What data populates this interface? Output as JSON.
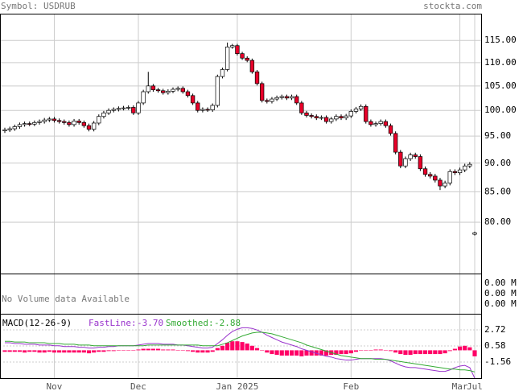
{
  "header": {
    "symbol": "Symbol: USDRUB",
    "site": "stockta.com"
  },
  "volume": {
    "message": "No Volume data Available",
    "ticks": [
      "0.00 M",
      "0.00 M",
      "0.00 M"
    ]
  },
  "chart_data": [
    {
      "type": "candlestick",
      "log_scale": true,
      "grid": true,
      "up_color": "#ffffff",
      "down_color": "#e8002a",
      "categories": [
        null,
        null,
        null,
        null,
        null,
        null,
        null,
        null,
        null,
        null,
        "Nov",
        null,
        null,
        null,
        null,
        null,
        null,
        null,
        null,
        null,
        null,
        null,
        null,
        null,
        null,
        null,
        null,
        "Dec",
        null,
        null,
        null,
        null,
        null,
        null,
        null,
        null,
        null,
        null,
        null,
        null,
        null,
        null,
        null,
        null,
        null,
        null,
        null,
        "Jan 2025",
        null,
        null,
        null,
        null,
        null,
        null,
        null,
        null,
        null,
        null,
        null,
        null,
        null,
        null,
        null,
        null,
        null,
        null,
        null,
        null,
        null,
        null,
        "Feb",
        null,
        null,
        null,
        null,
        null,
        null,
        null,
        null,
        null,
        null,
        null,
        null,
        null,
        null,
        null,
        null,
        null,
        null,
        null,
        null,
        null,
        "Mar",
        null,
        null,
        "Jul"
      ],
      "open": [
        96.0,
        96.2,
        96.4,
        96.8,
        97.2,
        97.4,
        97.3,
        97.6,
        97.8,
        98.1,
        98.3,
        98.0,
        97.8,
        97.6,
        97.2,
        97.9,
        97.6,
        97.0,
        96.3,
        97.5,
        98.8,
        99.5,
        100.0,
        100.2,
        100.4,
        100.5,
        100.6,
        99.5,
        101.5,
        103.8,
        105.0,
        104.2,
        104.0,
        103.6,
        103.9,
        104.3,
        104.5,
        103.8,
        103.0,
        101.5,
        100.0,
        100.2,
        100.1,
        101.0,
        107.0,
        108.5,
        113.5,
        113.8,
        112.0,
        111.0,
        110.5,
        108.0,
        105.5,
        102.0,
        101.8,
        102.3,
        102.6,
        102.8,
        102.5,
        102.8,
        101.5,
        99.5,
        99.0,
        98.8,
        98.5,
        98.6,
        97.8,
        98.3,
        98.8,
        98.5,
        98.9,
        99.8,
        100.3,
        100.8,
        97.8,
        97.2,
        97.4,
        97.8,
        97.0,
        95.5,
        92.0,
        89.5,
        90.8,
        91.5,
        91.2,
        89.0,
        88.0,
        87.7,
        87.0,
        86.0,
        86.5,
        88.5,
        88.3,
        88.8,
        89.5,
        78.1
      ],
      "high": [
        96.6,
        96.8,
        97.2,
        97.6,
        97.8,
        97.8,
        98.0,
        98.2,
        98.5,
        98.7,
        98.7,
        98.4,
        98.2,
        98.0,
        98.3,
        98.3,
        98.0,
        97.4,
        97.9,
        99.2,
        99.9,
        100.4,
        100.6,
        100.8,
        100.9,
        101.0,
        101.0,
        101.9,
        104.2,
        108.0,
        105.4,
        104.6,
        104.4,
        104.3,
        104.7,
        104.9,
        104.9,
        104.2,
        103.4,
        101.9,
        100.6,
        100.6,
        101.4,
        107.4,
        108.9,
        114.5,
        114.2,
        114.2,
        112.4,
        111.4,
        110.9,
        108.4,
        105.9,
        102.4,
        102.7,
        103.0,
        103.2,
        103.2,
        103.2,
        103.2,
        101.9,
        99.9,
        99.4,
        99.2,
        99.0,
        99.0,
        98.7,
        99.2,
        99.2,
        99.3,
        100.2,
        100.7,
        101.2,
        101.2,
        98.2,
        97.8,
        98.2,
        98.2,
        97.4,
        95.9,
        92.4,
        91.2,
        91.9,
        91.9,
        91.6,
        89.4,
        88.4,
        88.1,
        87.4,
        86.9,
        88.9,
        88.9,
        89.2,
        89.9,
        90.2,
        78.5
      ],
      "low": [
        95.6,
        95.8,
        96.0,
        96.4,
        96.8,
        96.9,
        96.9,
        97.2,
        97.4,
        97.7,
        97.6,
        97.4,
        97.2,
        96.8,
        96.8,
        97.2,
        96.6,
        95.9,
        95.9,
        97.1,
        98.4,
        99.1,
        99.6,
        99.8,
        100.0,
        100.1,
        99.1,
        99.1,
        101.1,
        103.4,
        103.8,
        103.6,
        103.2,
        103.2,
        103.5,
        103.9,
        103.4,
        102.6,
        101.1,
        99.6,
        99.6,
        99.7,
        99.7,
        100.6,
        106.6,
        108.1,
        113.1,
        111.6,
        110.6,
        110.1,
        107.6,
        105.1,
        101.6,
        101.4,
        101.4,
        101.9,
        102.2,
        102.1,
        102.1,
        101.1,
        99.1,
        98.6,
        98.4,
        98.1,
        98.1,
        97.4,
        97.4,
        97.9,
        98.1,
        98.1,
        98.5,
        99.4,
        99.9,
        97.4,
        96.8,
        96.8,
        97.0,
        96.6,
        95.1,
        91.6,
        89.1,
        89.1,
        90.4,
        90.8,
        88.6,
        87.6,
        87.3,
        86.6,
        85.3,
        85.6,
        86.1,
        87.9,
        87.9,
        88.4,
        89.1,
        77.9
      ],
      "close": [
        96.2,
        96.4,
        96.8,
        97.2,
        97.4,
        97.3,
        97.6,
        97.8,
        98.1,
        98.3,
        98.0,
        97.8,
        97.6,
        97.2,
        97.9,
        97.6,
        97.0,
        96.3,
        97.5,
        98.8,
        99.5,
        100.0,
        100.2,
        100.4,
        100.5,
        100.6,
        99.5,
        101.5,
        103.8,
        105.0,
        104.2,
        104.0,
        103.6,
        103.9,
        104.3,
        104.5,
        103.8,
        103.0,
        101.5,
        100.0,
        100.2,
        100.1,
        101.0,
        107.0,
        108.5,
        113.5,
        113.8,
        112.0,
        111.0,
        110.5,
        108.0,
        105.5,
        102.0,
        101.8,
        102.3,
        102.6,
        102.8,
        102.5,
        102.8,
        101.5,
        99.5,
        99.0,
        98.8,
        98.5,
        98.6,
        97.8,
        98.3,
        98.8,
        98.5,
        98.9,
        99.8,
        100.3,
        100.8,
        97.8,
        97.2,
        97.4,
        97.8,
        97.0,
        95.5,
        92.0,
        89.5,
        90.8,
        91.5,
        91.2,
        89.0,
        88.0,
        87.7,
        87.0,
        86.0,
        86.5,
        88.5,
        88.3,
        88.8,
        89.5,
        89.8,
        78.3
      ],
      "ylim": [
        72.2,
        121.3
      ],
      "yticks": [
        {
          "value": 80,
          "label": "80.00"
        },
        {
          "value": 85,
          "label": "85.00"
        },
        {
          "value": 90,
          "label": "90.00"
        },
        {
          "value": 95,
          "label": "95.00"
        },
        {
          "value": 100,
          "label": "100.00"
        },
        {
          "value": 105,
          "label": "105.00"
        },
        {
          "value": 110,
          "label": "110.00"
        },
        {
          "value": 115,
          "label": "115.00"
        }
      ]
    },
    {
      "type": "macd",
      "title": "MACD(12-26-9)",
      "series": [
        {
          "name": "FastLine:",
          "last_label": "-3.70",
          "color": "#9933cc",
          "values": [
            1.0,
            1.0,
            0.9,
            0.9,
            0.8,
            0.8,
            0.8,
            0.7,
            0.7,
            0.7,
            0.6,
            0.6,
            0.5,
            0.5,
            0.5,
            0.4,
            0.4,
            0.3,
            0.3,
            0.4,
            0.4,
            0.5,
            0.5,
            0.6,
            0.6,
            0.6,
            0.6,
            0.7,
            0.8,
            0.9,
            0.9,
            0.9,
            0.8,
            0.8,
            0.8,
            0.7,
            0.7,
            0.6,
            0.5,
            0.4,
            0.3,
            0.3,
            0.4,
            0.9,
            1.4,
            2.0,
            2.5,
            2.8,
            3.0,
            3.0,
            2.9,
            2.7,
            2.4,
            2.0,
            1.7,
            1.4,
            1.1,
            0.9,
            0.7,
            0.5,
            0.2,
            0.0,
            -0.2,
            -0.4,
            -0.6,
            -0.8,
            -0.9,
            -1.1,
            -1.2,
            -1.3,
            -1.3,
            -1.2,
            -1.1,
            -1.1,
            -1.1,
            -1.1,
            -1.1,
            -1.2,
            -1.4,
            -1.7,
            -2.0,
            -2.2,
            -2.3,
            -2.3,
            -2.4,
            -2.5,
            -2.6,
            -2.7,
            -2.8,
            -2.8,
            -2.6,
            -2.3,
            -2.1,
            -2.0,
            -2.3,
            -3.7
          ]
        },
        {
          "name": "Smoothed:",
          "last_label": "-2.88",
          "color": "#33aa33",
          "values": [
            1.2,
            1.2,
            1.1,
            1.1,
            1.1,
            1.0,
            1.0,
            1.0,
            1.0,
            0.9,
            0.9,
            0.9,
            0.8,
            0.8,
            0.8,
            0.7,
            0.7,
            0.7,
            0.6,
            0.6,
            0.6,
            0.6,
            0.6,
            0.6,
            0.6,
            0.6,
            0.6,
            0.6,
            0.6,
            0.7,
            0.7,
            0.7,
            0.7,
            0.7,
            0.7,
            0.7,
            0.7,
            0.7,
            0.7,
            0.7,
            0.6,
            0.6,
            0.6,
            0.6,
            0.8,
            1.0,
            1.3,
            1.6,
            1.9,
            2.1,
            2.3,
            2.4,
            2.4,
            2.3,
            2.2,
            2.0,
            1.8,
            1.6,
            1.4,
            1.2,
            1.0,
            0.7,
            0.5,
            0.3,
            0.1,
            -0.1,
            -0.3,
            -0.5,
            -0.7,
            -0.8,
            -0.9,
            -1.0,
            -1.1,
            -1.1,
            -1.1,
            -1.2,
            -1.2,
            -1.2,
            -1.3,
            -1.4,
            -1.5,
            -1.6,
            -1.7,
            -1.8,
            -1.9,
            -2.0,
            -2.1,
            -2.2,
            -2.3,
            -2.4,
            -2.5,
            -2.5,
            -2.6,
            -2.6,
            -2.7,
            -2.88
          ]
        }
      ],
      "histogram": {
        "color": "#ff0066",
        "values": [
          -0.2,
          -0.2,
          -0.2,
          -0.2,
          -0.3,
          -0.2,
          -0.2,
          -0.3,
          -0.3,
          -0.2,
          -0.3,
          -0.3,
          -0.3,
          -0.3,
          -0.3,
          -0.3,
          -0.3,
          -0.4,
          -0.3,
          -0.2,
          -0.2,
          -0.1,
          -0.1,
          0.0,
          0.0,
          0.0,
          0.0,
          0.1,
          0.2,
          0.2,
          0.2,
          0.2,
          0.1,
          0.1,
          0.1,
          0.0,
          0.0,
          -0.1,
          -0.2,
          -0.3,
          -0.3,
          -0.3,
          -0.2,
          0.3,
          0.6,
          1.0,
          1.2,
          1.2,
          1.1,
          0.9,
          0.6,
          0.3,
          0.0,
          -0.3,
          -0.5,
          -0.6,
          -0.7,
          -0.7,
          -0.7,
          -0.7,
          -0.8,
          -0.7,
          -0.7,
          -0.7,
          -0.7,
          -0.7,
          -0.6,
          -0.6,
          -0.5,
          -0.5,
          -0.4,
          -0.2,
          0.0,
          0.0,
          0.0,
          0.1,
          0.1,
          0.0,
          -0.1,
          -0.3,
          -0.5,
          -0.6,
          -0.6,
          -0.5,
          -0.5,
          -0.5,
          -0.5,
          -0.5,
          -0.5,
          -0.4,
          -0.1,
          0.2,
          0.5,
          0.6,
          0.4,
          -0.8
        ]
      },
      "ylim": [
        -3.7,
        4.75
      ],
      "yticks": [
        2.72,
        0.58,
        -1.56
      ]
    }
  ]
}
